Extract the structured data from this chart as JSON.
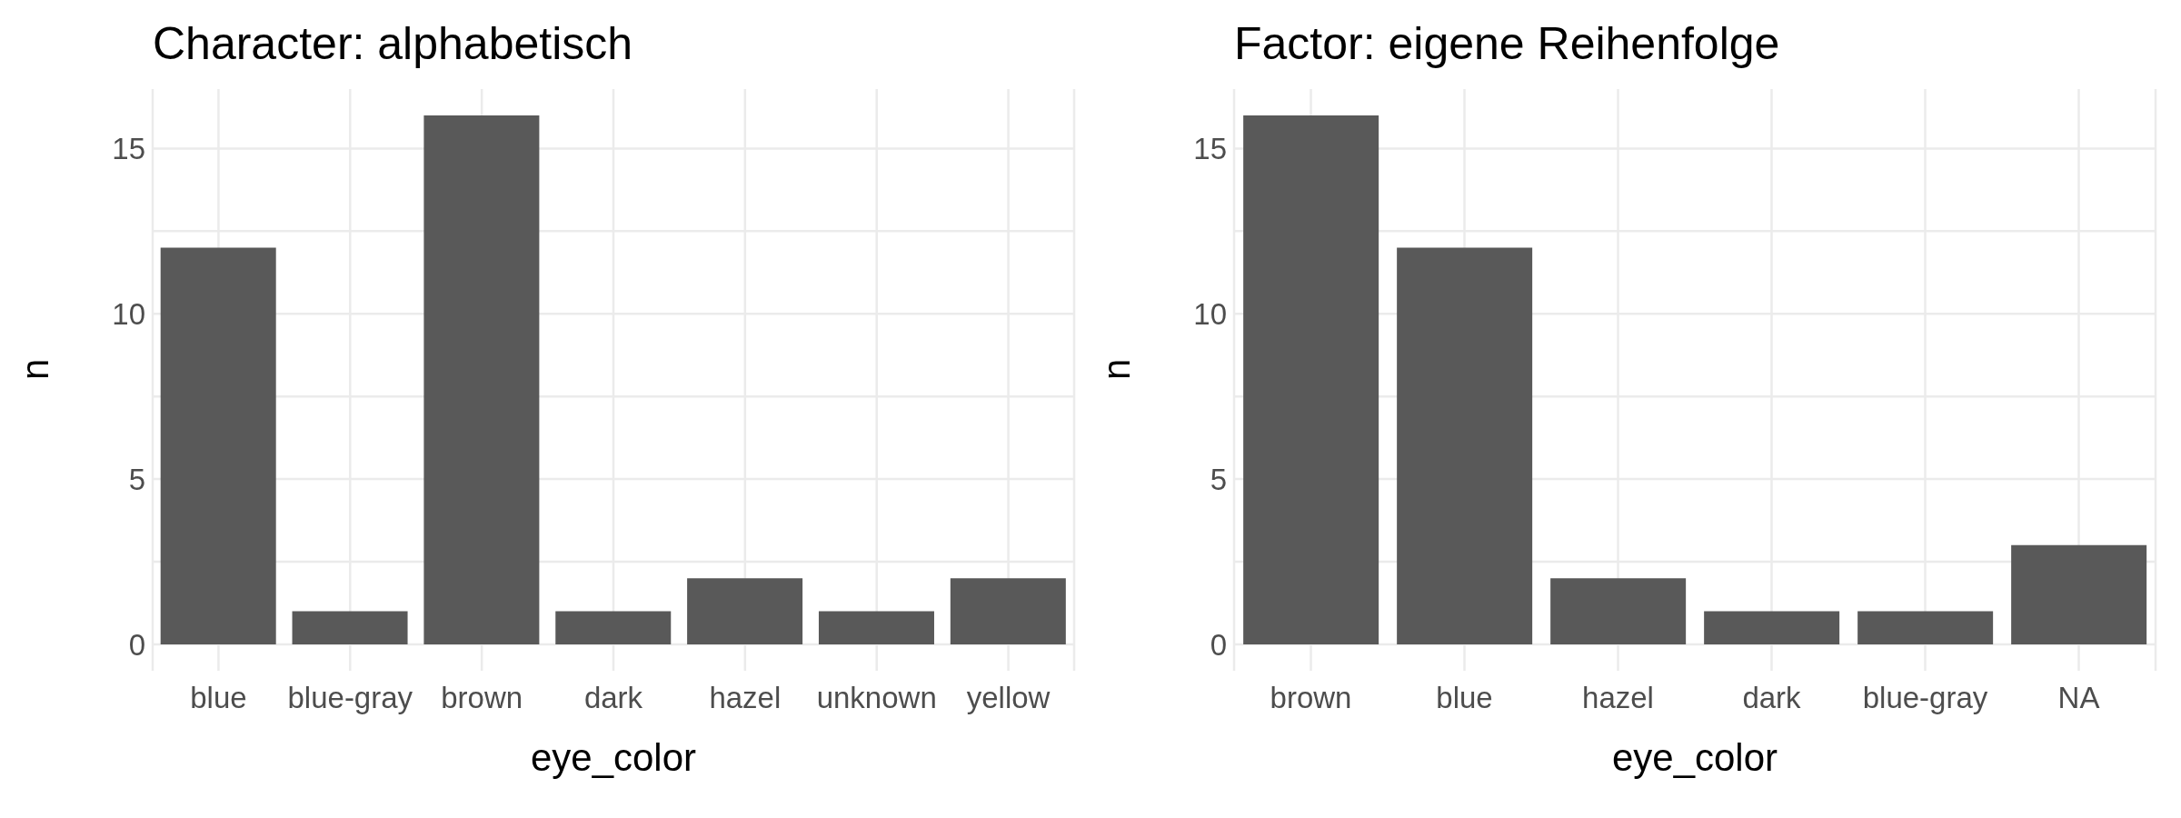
{
  "chart_data": [
    {
      "type": "bar",
      "title": "Character: alphabetisch",
      "xlabel": "eye_color",
      "ylabel": "n",
      "categories": [
        "blue",
        "blue-gray",
        "brown",
        "dark",
        "hazel",
        "unknown",
        "yellow"
      ],
      "values": [
        12,
        1,
        16,
        1,
        2,
        1,
        2
      ],
      "color": "#595959",
      "ylim": [
        -0.8,
        16.8
      ],
      "yticks": [
        0,
        {
          "value": 2.5,
          "label": null
        },
        5,
        {
          "value": 7.5,
          "label": null
        },
        10,
        {
          "value": 12.5,
          "label": null
        },
        15
      ],
      "grid": true
    },
    {
      "type": "bar",
      "title": "Factor: eigene Reihenfolge",
      "xlabel": "eye_color",
      "ylabel": "n",
      "categories": [
        "brown",
        "blue",
        "hazel",
        "dark",
        "blue-gray",
        "NA"
      ],
      "values": [
        16,
        12,
        2,
        1,
        1,
        3
      ],
      "color": "#595959",
      "ylim": [
        -0.8,
        16.8
      ],
      "yticks": [
        0,
        {
          "value": 2.5,
          "label": null
        },
        5,
        {
          "value": 7.5,
          "label": null
        },
        10,
        {
          "value": 12.5,
          "label": null
        },
        15
      ],
      "grid": true
    }
  ]
}
